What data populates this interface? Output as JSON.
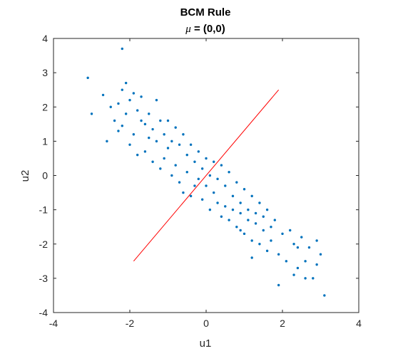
{
  "chart_data": {
    "type": "scatter",
    "title": "BCM Rule",
    "subtitle_symbol": "μ",
    "subtitle_rest": " = (0,0)",
    "xlabel": "u1",
    "ylabel": "u2",
    "xlim": [
      -4,
      4
    ],
    "ylim": [
      -4,
      4
    ],
    "xticks": [
      -4,
      -2,
      0,
      2,
      4
    ],
    "yticks": [
      -4,
      -3,
      -2,
      -1,
      0,
      1,
      2,
      3,
      4
    ],
    "grid": false,
    "colors": {
      "points": "#0072BD",
      "line": "#FF0000",
      "axes": "#262626"
    },
    "series": [
      {
        "type": "scatter",
        "x": [
          -2.2,
          -3.1,
          -3.0,
          -2.7,
          -2.6,
          -2.5,
          -2.4,
          -2.3,
          -2.3,
          -2.2,
          -2.2,
          -2.1,
          -2.1,
          -2.0,
          -2.0,
          -1.9,
          -1.9,
          -1.8,
          -1.8,
          -1.7,
          -1.7,
          -1.6,
          -1.6,
          -1.5,
          -1.5,
          -1.4,
          -1.4,
          -1.3,
          -1.3,
          -1.2,
          -1.2,
          -1.1,
          -1.1,
          -1.0,
          -1.0,
          -0.9,
          -0.9,
          -0.8,
          -0.8,
          -0.7,
          -0.7,
          -0.6,
          -0.6,
          -0.5,
          -0.5,
          -0.4,
          -0.4,
          -0.3,
          -0.3,
          -0.2,
          -0.2,
          -0.1,
          -0.1,
          0.0,
          0.0,
          0.1,
          0.1,
          0.2,
          0.2,
          0.3,
          0.3,
          0.4,
          0.4,
          0.5,
          0.5,
          0.6,
          0.6,
          0.7,
          0.7,
          0.8,
          0.8,
          0.9,
          0.9,
          1.0,
          1.0,
          1.1,
          1.1,
          1.2,
          1.2,
          1.3,
          1.3,
          1.4,
          1.4,
          1.5,
          1.5,
          1.6,
          1.6,
          1.7,
          1.8,
          1.9,
          2.0,
          2.1,
          2.2,
          2.3,
          2.4,
          2.5,
          2.6,
          2.7,
          2.8,
          2.9,
          3.0,
          3.1,
          1.9,
          2.3,
          2.6,
          2.9,
          1.2,
          1.7,
          2.4,
          0.9
        ],
        "y": [
          3.7,
          2.85,
          1.8,
          2.35,
          1.0,
          2.0,
          1.6,
          2.1,
          1.3,
          2.5,
          1.45,
          2.7,
          1.8,
          2.2,
          0.9,
          2.4,
          1.2,
          1.9,
          0.6,
          1.6,
          2.3,
          1.5,
          0.7,
          1.8,
          1.1,
          1.35,
          0.4,
          2.2,
          1.0,
          1.6,
          0.2,
          1.2,
          0.5,
          1.6,
          0.8,
          1.0,
          0.0,
          1.4,
          0.3,
          0.9,
          -0.2,
          1.2,
          -0.5,
          0.6,
          0.1,
          0.9,
          -0.6,
          0.4,
          -0.3,
          0.7,
          -0.1,
          0.2,
          -0.7,
          0.5,
          -0.3,
          0.0,
          -1.0,
          0.4,
          -0.5,
          -0.1,
          -0.8,
          0.3,
          -1.2,
          -0.3,
          -0.9,
          0.1,
          -1.3,
          -0.6,
          -1.0,
          -0.2,
          -1.5,
          -0.8,
          -1.1,
          -0.4,
          -1.7,
          -1.0,
          -1.3,
          -0.6,
          -1.9,
          -1.1,
          -1.4,
          -0.8,
          -2.0,
          -1.2,
          -1.6,
          -1.0,
          -2.2,
          -1.5,
          -1.3,
          -2.3,
          -1.7,
          -2.5,
          -1.6,
          -2.0,
          -2.1,
          -1.8,
          -2.5,
          -2.1,
          -3.0,
          -1.9,
          -2.3,
          -3.5,
          -3.2,
          -2.9,
          -3.0,
          -2.6,
          -2.4,
          -1.9,
          -2.7,
          -1.6
        ]
      },
      {
        "type": "line",
        "x": [
          -1.9,
          1.9
        ],
        "y": [
          -2.5,
          2.5
        ]
      }
    ]
  }
}
